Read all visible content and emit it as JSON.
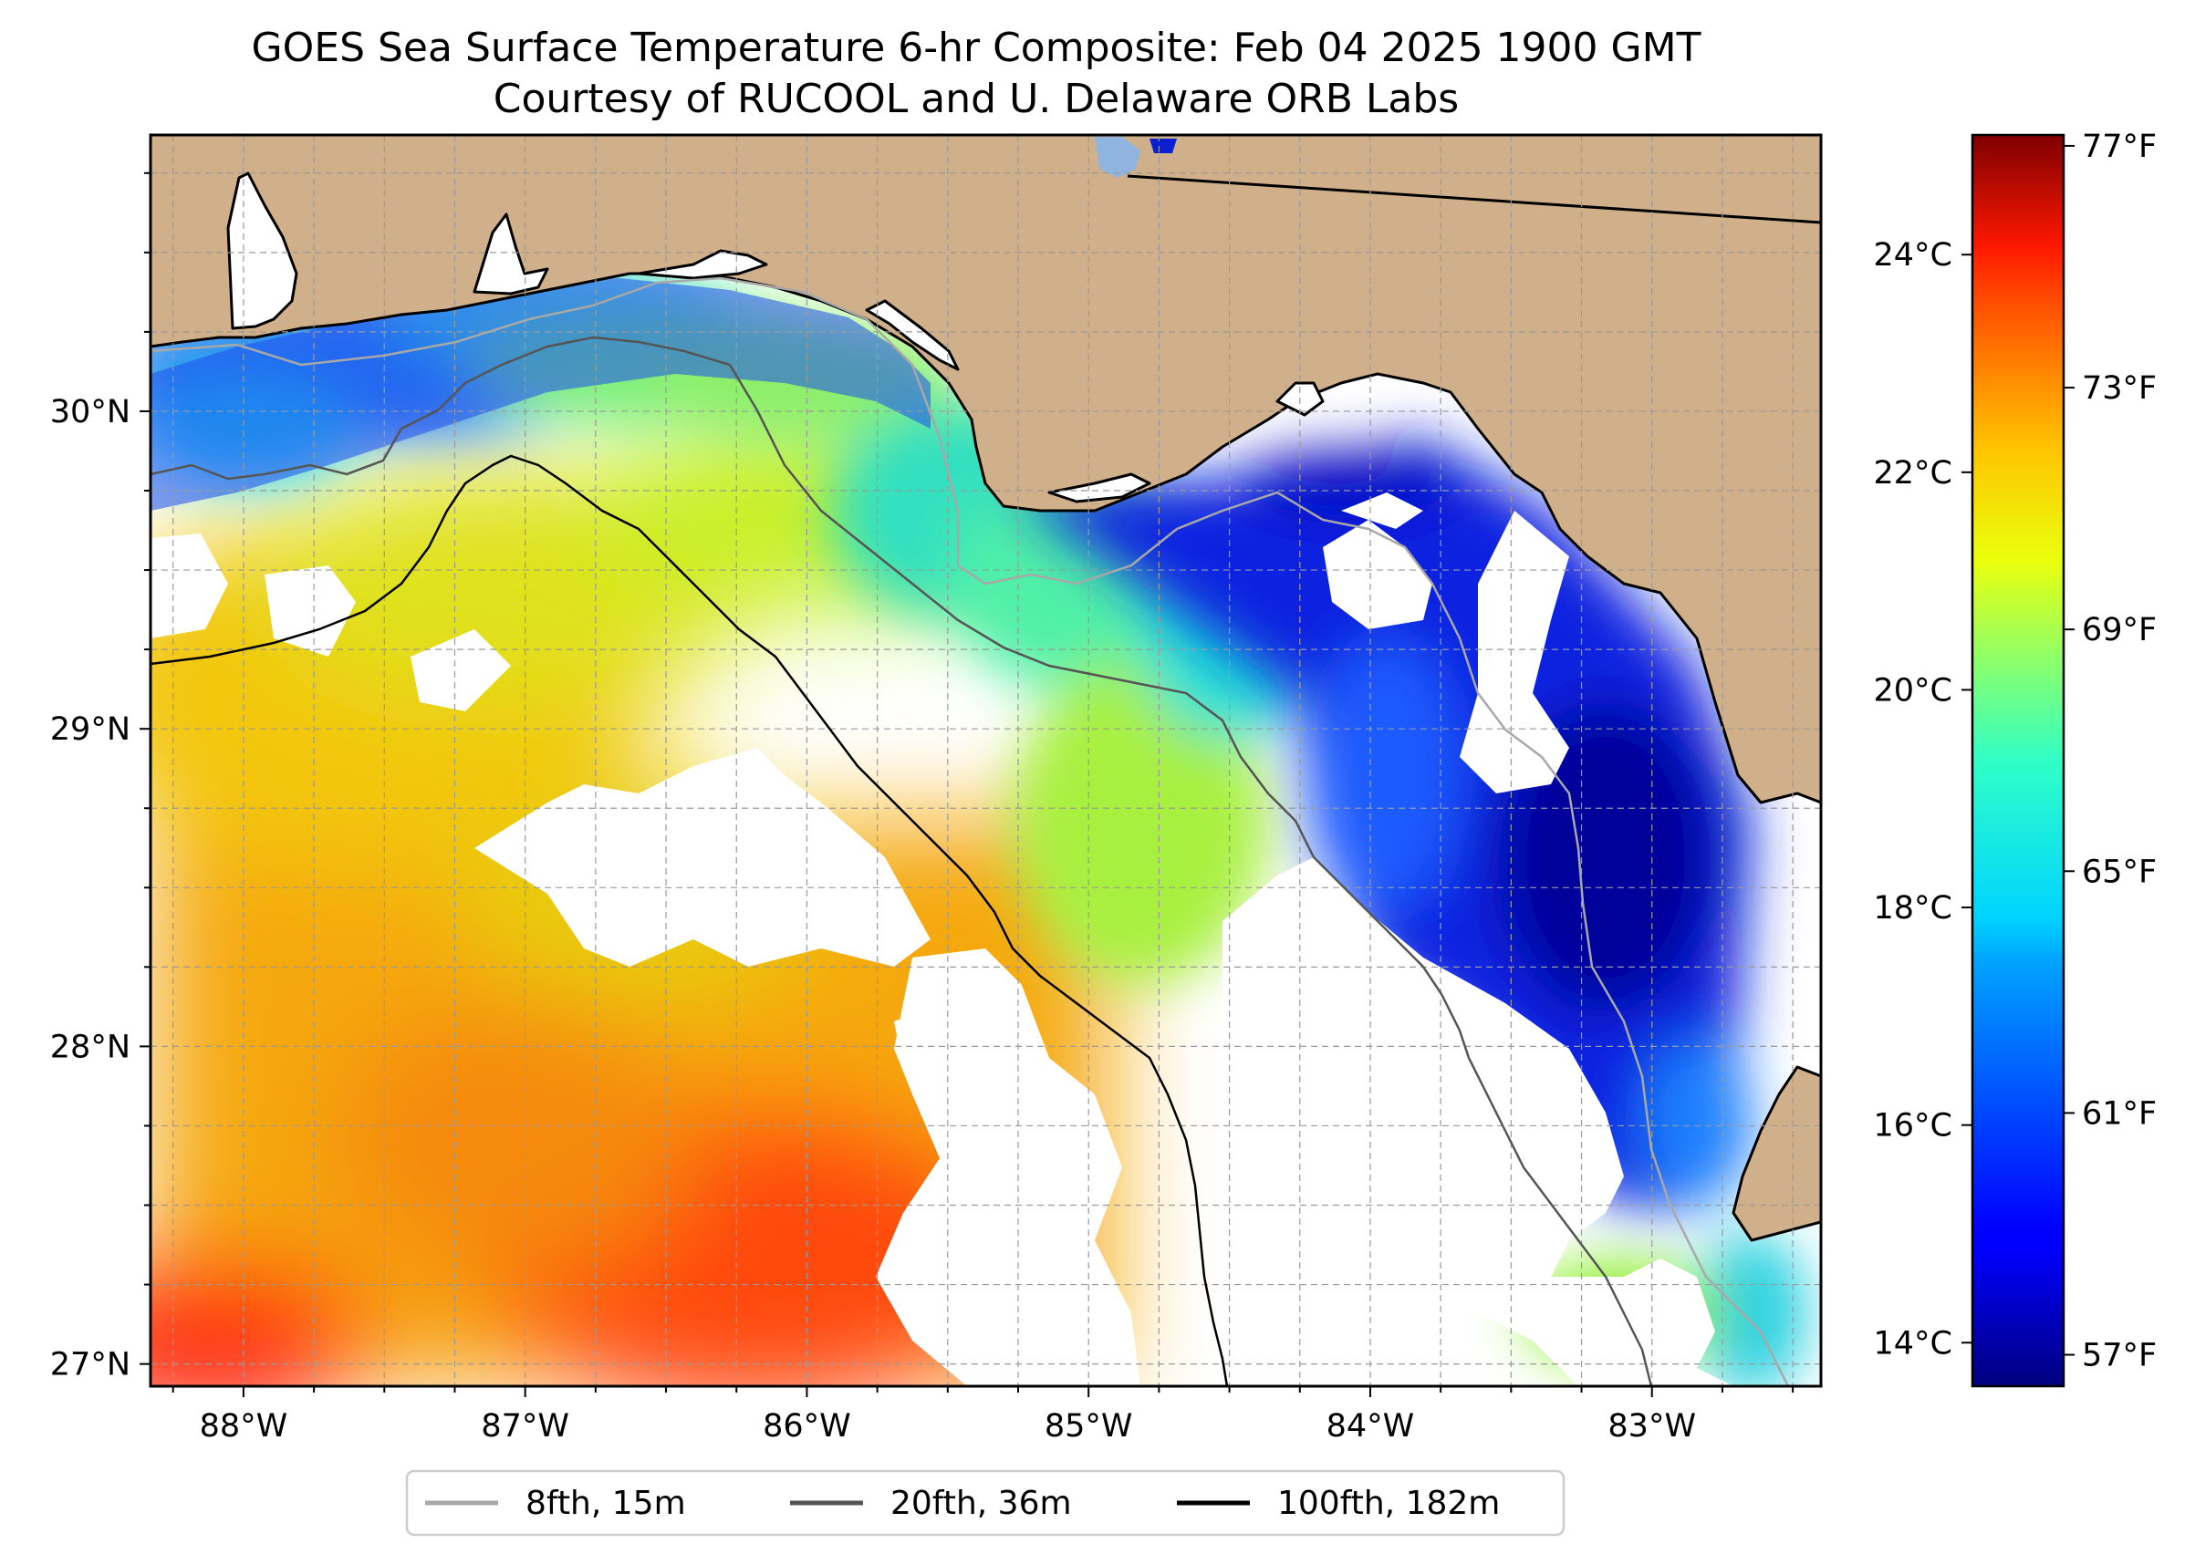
{
  "title": {
    "line1": "GOES Sea Surface Temperature 6-hr Composite: Feb 04 2025 1900 GMT",
    "line2": "Courtesy of RUCOOL and U. Delaware ORB Labs"
  },
  "map": {
    "lon_range": [
      -88.33,
      -82.4
    ],
    "lat_range": [
      26.93,
      30.87
    ],
    "lon_ticks": [
      {
        "value": -88,
        "label": "88°W"
      },
      {
        "value": -87,
        "label": "87°W"
      },
      {
        "value": -86,
        "label": "86°W"
      },
      {
        "value": -85,
        "label": "85°W"
      },
      {
        "value": -84,
        "label": "84°W"
      },
      {
        "value": -83,
        "label": "83°W"
      }
    ],
    "lat_ticks": [
      {
        "value": 27,
        "label": "27°N"
      },
      {
        "value": 28,
        "label": "28°N"
      },
      {
        "value": 29,
        "label": "29°N"
      },
      {
        "value": 30,
        "label": "30°N"
      }
    ],
    "colors": {
      "land": "#cfb08a",
      "no_data": "#ffffff",
      "coastline": "#000000"
    }
  },
  "colorbar": {
    "colormap": "jet",
    "range_c": [
      13.6,
      25.1
    ],
    "celsius_ticks": [
      {
        "value": 14,
        "label": "14°C"
      },
      {
        "value": 16,
        "label": "16°C"
      },
      {
        "value": 18,
        "label": "18°C"
      },
      {
        "value": 20,
        "label": "20°C"
      },
      {
        "value": 22,
        "label": "22°C"
      },
      {
        "value": 24,
        "label": "24°C"
      }
    ],
    "fahrenheit_ticks": [
      {
        "value": 57,
        "label": "57°F"
      },
      {
        "value": 61,
        "label": "61°F"
      },
      {
        "value": 65,
        "label": "65°F"
      },
      {
        "value": 69,
        "label": "69°F"
      },
      {
        "value": 73,
        "label": "73°F"
      },
      {
        "value": 77,
        "label": "77°F"
      }
    ]
  },
  "legend": {
    "items": [
      {
        "label": "8fth, 15m",
        "color": "#a8a8a8"
      },
      {
        "label": "20fth, 36m",
        "color": "#555555"
      },
      {
        "label": "100fth, 182m",
        "color": "#000000"
      }
    ]
  }
}
